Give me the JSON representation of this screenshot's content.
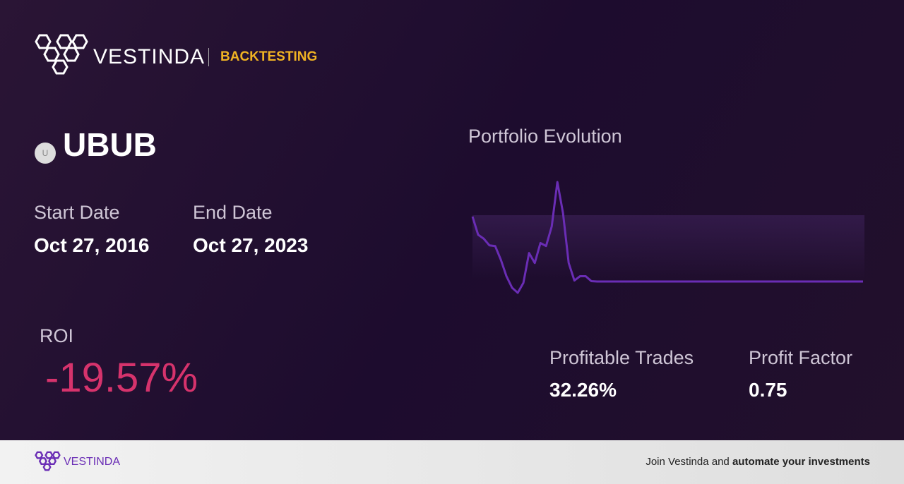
{
  "header": {
    "brand": "VESTINDA",
    "section": "BACKTESTING"
  },
  "asset": {
    "icon": "U",
    "ticker": "UBUB"
  },
  "dates": {
    "start_label": "Start Date",
    "start": "Oct 27, 2016",
    "end_label": "End Date",
    "end": "Oct 27, 2023"
  },
  "roi": {
    "label": "ROI",
    "value": "-19.57%"
  },
  "chart_data": {
    "type": "line",
    "title": "Portfolio Evolution",
    "color": "#6a2db5",
    "values": [
      100,
      94.5,
      93.3,
      91.3,
      91.1,
      87,
      82,
      78.5,
      77,
      80,
      89,
      86,
      92,
      91.1,
      97,
      110.4,
      101,
      86,
      80.7,
      82,
      82,
      80.5,
      80.4,
      80.4,
      80.4,
      80.4,
      80.4,
      80.4,
      80.4,
      80.4,
      80.4,
      80.4,
      80.4,
      80.4,
      80.4,
      80.4,
      80.4,
      80.4,
      80.4,
      80.4,
      80.4,
      80.4,
      80.4,
      80.4,
      80.4,
      80.4,
      80.4,
      80.4,
      80.4,
      80.4,
      80.4,
      80.4,
      80.4,
      80.4,
      80.4,
      80.4,
      80.4,
      80.4,
      80.4,
      80.4,
      80.4,
      80.4,
      80.4,
      80.4,
      80.4,
      80.4,
      80.4,
      80.4,
      80.4,
      80.4
    ]
  },
  "stats": [
    {
      "label": "Profitable Trades",
      "value": "32.26%"
    },
    {
      "label": "Profit Factor",
      "value": "0.75"
    }
  ],
  "footer": {
    "brand": "VESTINDA",
    "text": "Join Vestinda and",
    "bold": "automate your investments"
  }
}
